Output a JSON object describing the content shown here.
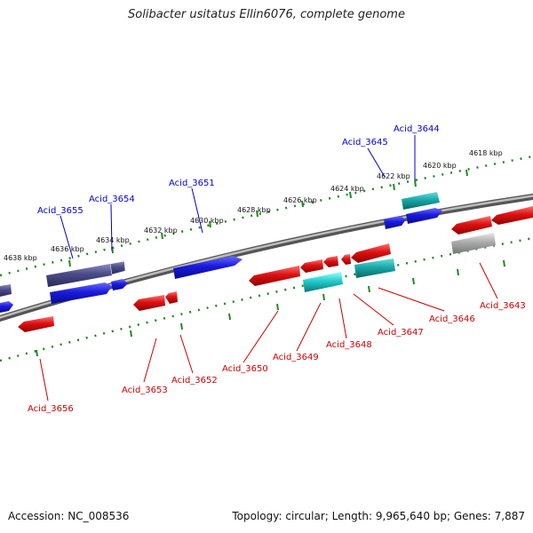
{
  "title": "Solibacter usitatus Ellin6076, complete genome",
  "footer": {
    "accession": "Accession: NC_008536",
    "summary": "Topology: circular; Length: 9,965,640 bp; Genes: 7,887"
  },
  "scale_labels": [
    "4618 kbp",
    "4620 kbp",
    "4622 kbp",
    "4624 kbp",
    "4626 kbp",
    "4628 kbp",
    "4630 kbp",
    "4632 kbp",
    "4634 kbp",
    "4636 kbp",
    "4638 kbp"
  ],
  "forward_gene_labels": [
    "Acid_3644",
    "Acid_3645",
    "Acid_3651",
    "Acid_3654",
    "Acid_3655"
  ],
  "reverse_gene_labels": [
    "Acid_3643",
    "Acid_3646",
    "Acid_3647",
    "Acid_3648",
    "Acid_3649",
    "Acid_3650",
    "Acid_3652",
    "Acid_3653",
    "Acid_3656"
  ],
  "colors": {
    "forward_label": "#0000cc",
    "reverse_label": "#cc0000",
    "forward_gene": "#1a1adc",
    "forward_gene_dark": "#4a4a88",
    "reverse_gene": "#dd1111",
    "cyan_gene": "#22cccc",
    "grey_gene": "#aaaaaa",
    "backbone": "#888888",
    "tick": "#228822"
  }
}
